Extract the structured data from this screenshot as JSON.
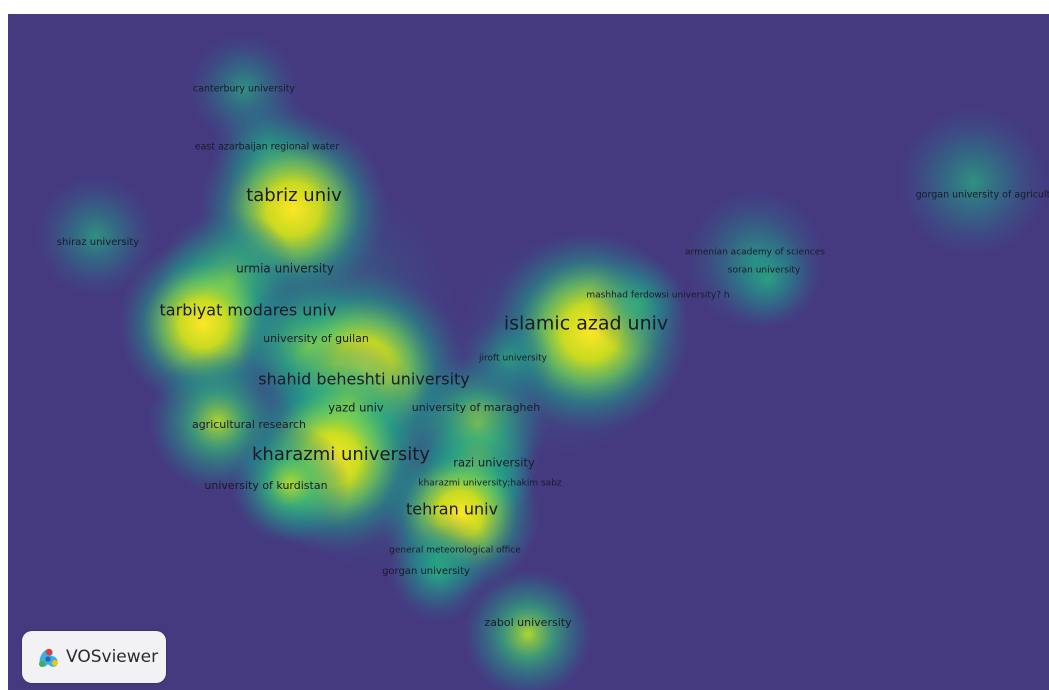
{
  "map": {
    "background": "#453a80",
    "nodes": [
      {
        "label": "canterbury university",
        "weight": 0.35
      },
      {
        "label": "east azarbaijan regional water",
        "weight": 0.35
      },
      {
        "label": "tabriz univ",
        "weight": 1.0
      },
      {
        "label": "shiraz university",
        "weight": 0.35
      },
      {
        "label": "urmia university",
        "weight": 0.55
      },
      {
        "label": "tarbiyat modares univ",
        "weight": 0.85
      },
      {
        "label": "university of guilan",
        "weight": 0.5
      },
      {
        "label": "shahid beheshti university",
        "weight": 1.0
      },
      {
        "label": "yazd univ",
        "weight": 0.5
      },
      {
        "label": "university of maragheh",
        "weight": 0.5
      },
      {
        "label": "agricultural research",
        "weight": 0.6
      },
      {
        "label": "kharazmi university",
        "weight": 1.0
      },
      {
        "label": "razi university",
        "weight": 0.5
      },
      {
        "label": "university of kurdistan",
        "weight": 0.55
      },
      {
        "label": "kharazmi university;hakim sabz",
        "weight": 0.4
      },
      {
        "label": "tehran univ",
        "weight": 0.95
      },
      {
        "label": "general meteorological office",
        "weight": 0.35
      },
      {
        "label": "gorgan university",
        "weight": 0.4
      },
      {
        "label": "zabol university",
        "weight": 0.5
      },
      {
        "label": "islamic azad univ",
        "weight": 1.0
      },
      {
        "label": "mashhad ferdowsi university? h",
        "weight": 0.45
      },
      {
        "label": "jiroft university",
        "weight": 0.4
      },
      {
        "label": "armenian academy of sciences",
        "weight": 0.45
      },
      {
        "label": "soran university",
        "weight": 0.4
      },
      {
        "label": "gorgan university of agricult",
        "weight": 0.45
      }
    ]
  },
  "logo": {
    "text": "VOSviewer"
  }
}
